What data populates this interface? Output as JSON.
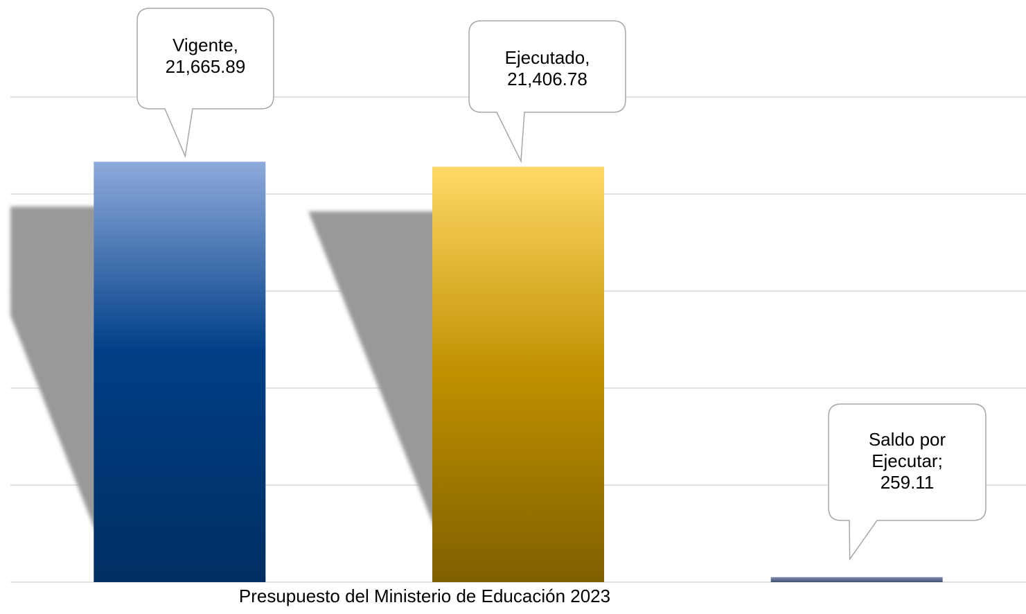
{
  "chart_data": {
    "type": "bar",
    "x_label": "Presupuesto del Ministerio de Educación 2023",
    "values": [
      21665.89,
      21406.78,
      259.11
    ],
    "value_labels": [
      "Vigente, 21,665.89",
      "Ejecutado, 21,406.78",
      "Saldo por Ejecutar; 259.11"
    ],
    "colors": [
      "#2f5597",
      "#bf9000",
      "#5b6f90"
    ],
    "ylim": [
      0,
      25000
    ],
    "yticks": [
      0,
      5000,
      10000,
      15000,
      20000,
      25000
    ],
    "grid": true
  }
}
